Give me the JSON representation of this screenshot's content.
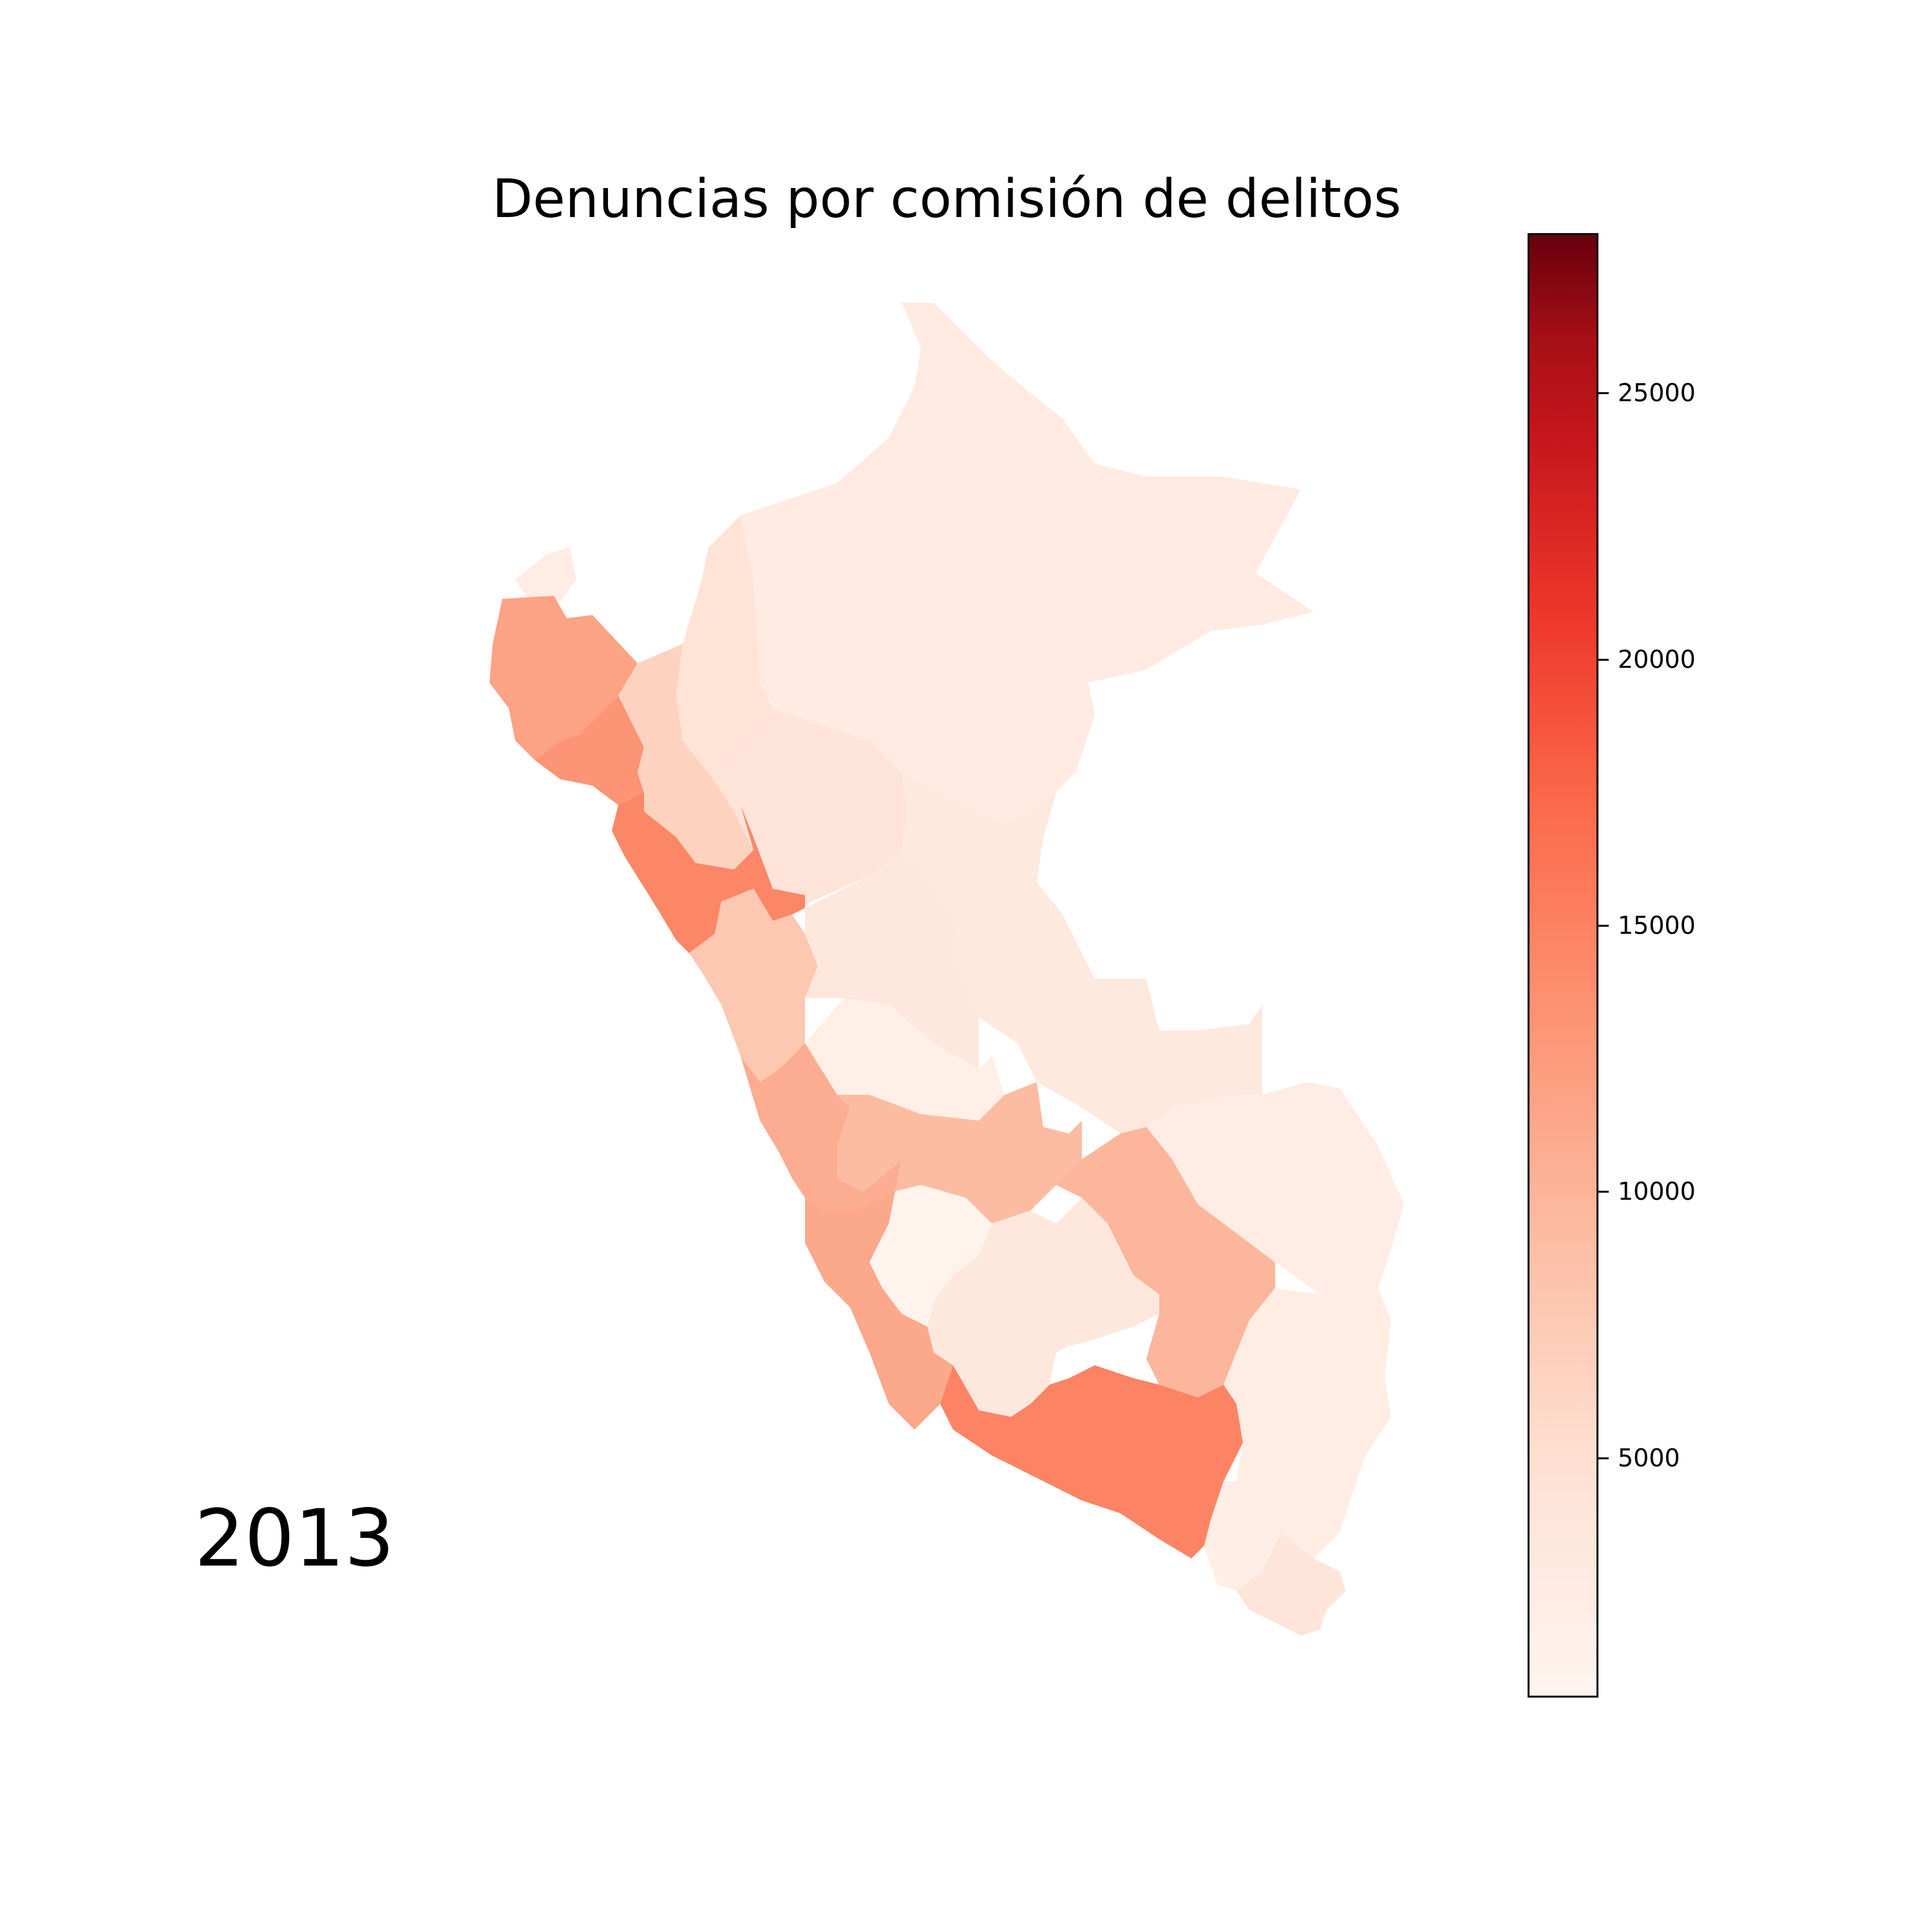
{
  "map": {
    "title": "Denuncias por comisión de delitos",
    "year": "2013",
    "colormap": "Reds",
    "colorbar": {
      "min": 500,
      "max": 28000,
      "ticks": [
        {
          "value": 25000,
          "label": "25000"
        },
        {
          "value": 20000,
          "label": "20000"
        },
        {
          "value": 15000,
          "label": "15000"
        },
        {
          "value": 10000,
          "label": "10000"
        },
        {
          "value": 5000,
          "label": "5000"
        }
      ]
    },
    "regions": [
      {
        "id": "tumbes",
        "value": 2300
      },
      {
        "id": "loreto",
        "value": 2600
      },
      {
        "id": "amazonas",
        "value": 4300
      },
      {
        "id": "piura",
        "value": 11800
      },
      {
        "id": "cajamarca",
        "value": 6500
      },
      {
        "id": "lambayeque",
        "value": 13200
      },
      {
        "id": "san-martin",
        "value": 4000
      },
      {
        "id": "la-libertad",
        "value": 14500
      },
      {
        "id": "ancash",
        "value": 7800
      },
      {
        "id": "huanuco",
        "value": 3200
      },
      {
        "id": "pasco",
        "value": 1800
      },
      {
        "id": "ucayali",
        "value": 3000
      },
      {
        "id": "lima",
        "value": 10800
      },
      {
        "id": "junin",
        "value": 9200
      },
      {
        "id": "ica",
        "value": 11200
      },
      {
        "id": "huancavelica",
        "value": 900
      },
      {
        "id": "ayacucho",
        "value": 3200
      },
      {
        "id": "cusco",
        "value": 9800
      },
      {
        "id": "madre-de-dios",
        "value": 2300
      },
      {
        "id": "apurimac",
        "value": 3400
      },
      {
        "id": "puno",
        "value": 2200
      },
      {
        "id": "arequipa",
        "value": 14800
      },
      {
        "id": "moquegua",
        "value": 2000
      },
      {
        "id": "tacna",
        "value": 3900
      }
    ]
  }
}
